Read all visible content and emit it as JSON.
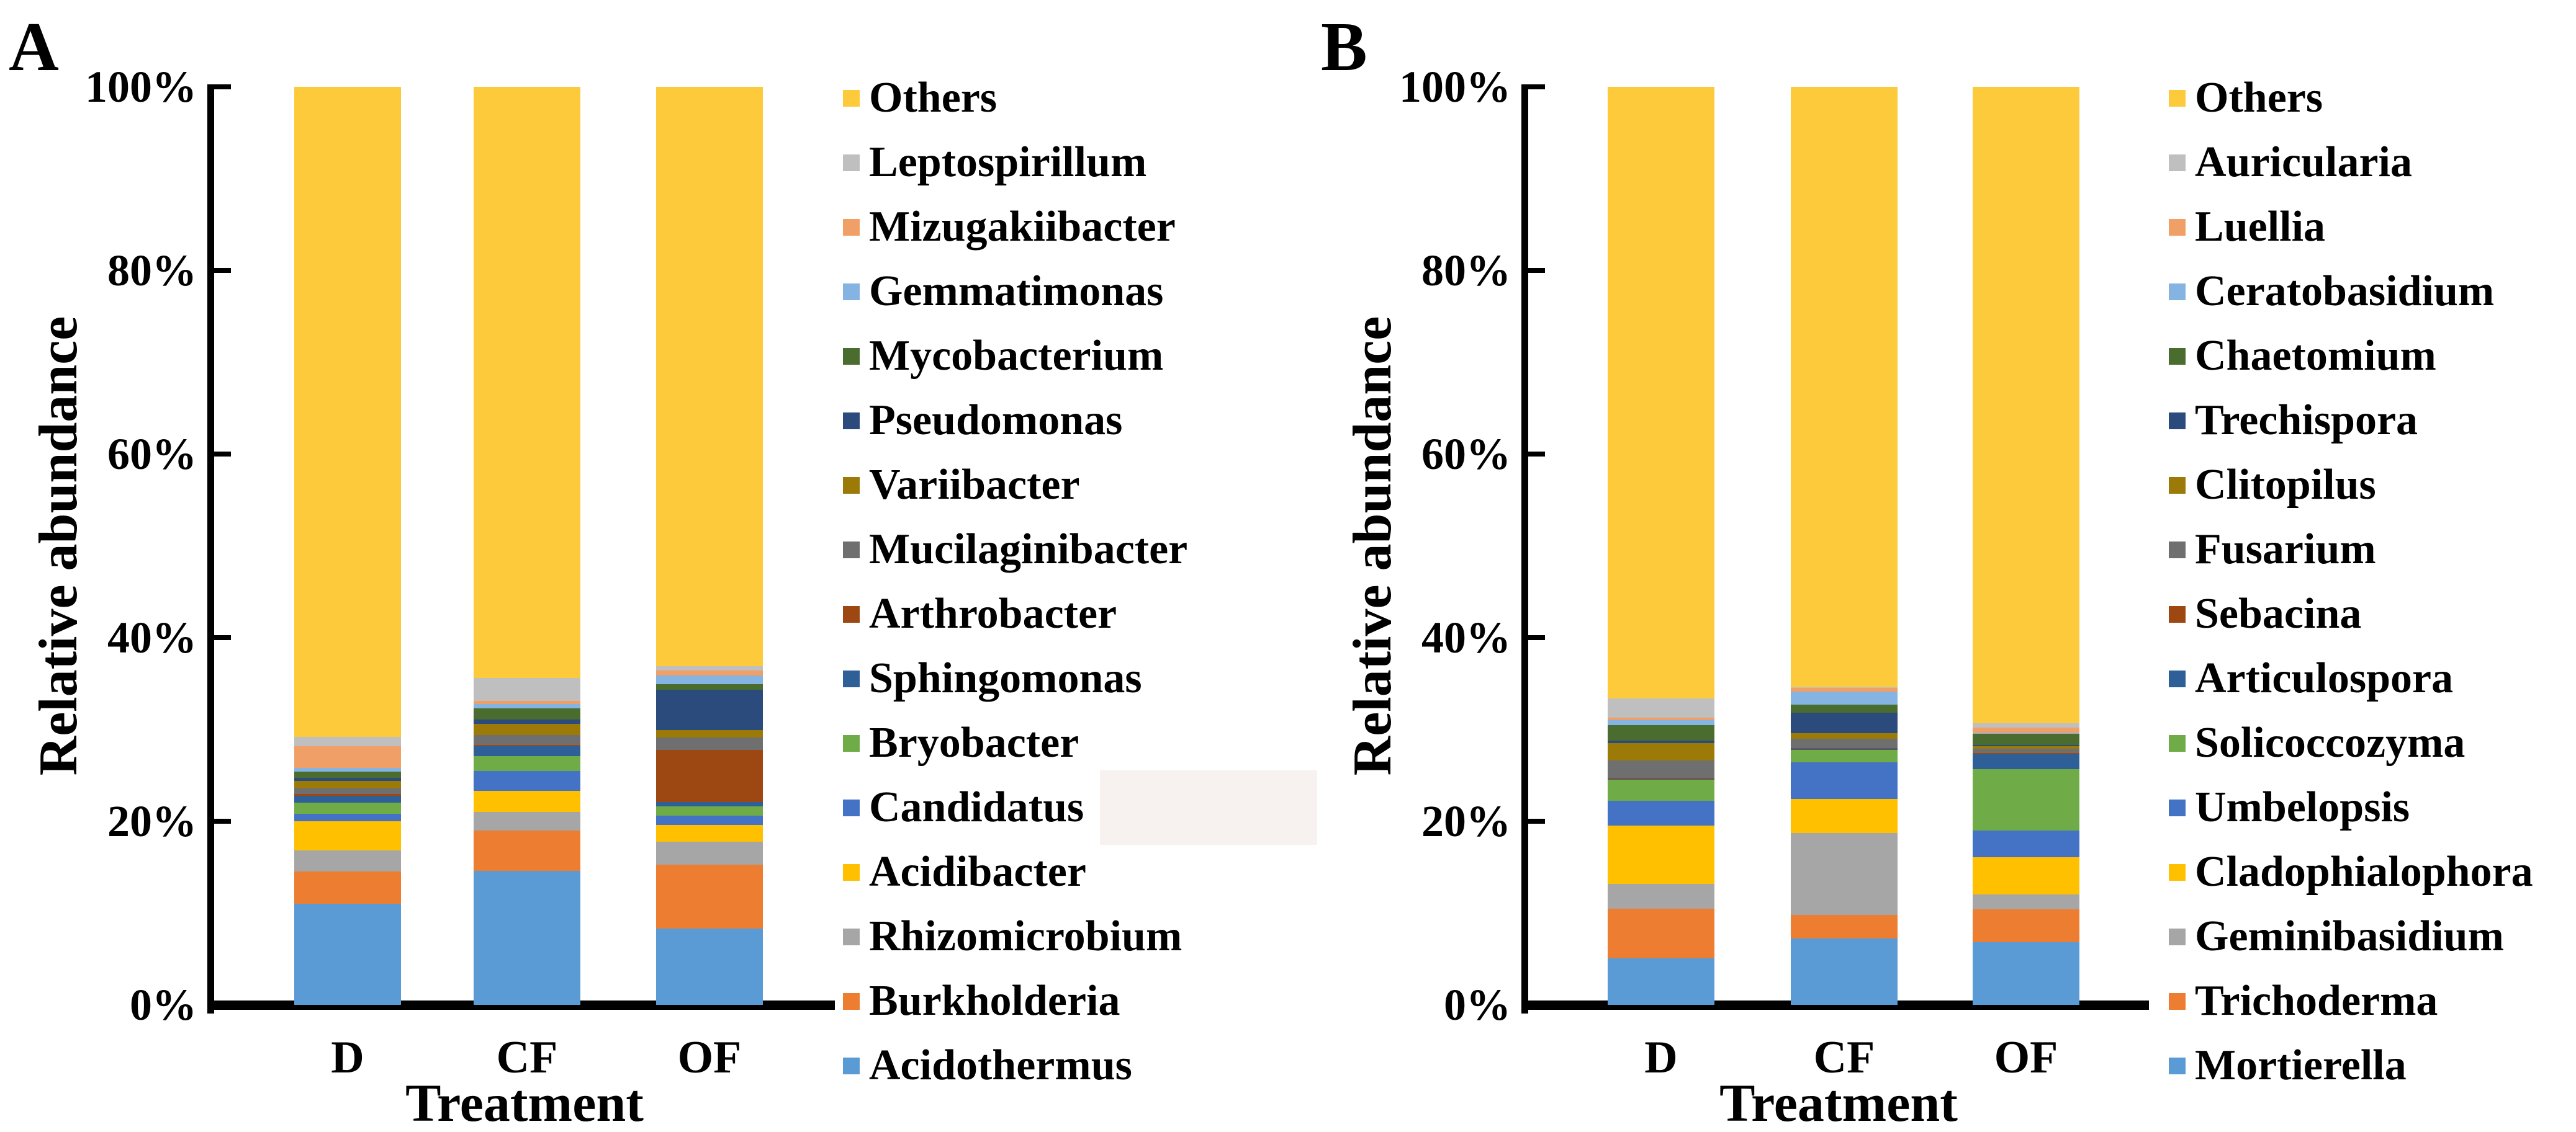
{
  "figure": {
    "background": "#ffffff",
    "text_color": "#000000"
  },
  "overlay_patch": {
    "color": "#F7F1EF",
    "description": "light blank rectangle covering area right of the Candidatus legend label"
  },
  "chart_data": [
    {
      "type": "bar",
      "stacked": true,
      "panel_label": "A",
      "subject": "bacterial genera relative abundance",
      "xlabel": "Treatment",
      "ylabel": "Relative abundance",
      "categories": [
        "D",
        "CF",
        "OF"
      ],
      "ylim": [
        0,
        100
      ],
      "y_ticks_percent": [
        100,
        80,
        60,
        40,
        20,
        0
      ],
      "y_tick_labels": [
        "100%",
        "80%",
        "60%",
        "40%",
        "20%",
        "0%"
      ],
      "grid": false,
      "legend_position": "right-outside",
      "series_order_note": "series listed top-to-bottom as in legend; bars stack with the last series at the bottom",
      "series": [
        {
          "name": "Others",
          "color": "#FDCA3B",
          "values": [
            70.8,
            64.4,
            63.1
          ]
        },
        {
          "name": "Leptospirillum",
          "color": "#BFBFBF",
          "values": [
            1.0,
            2.5,
            0.5
          ]
        },
        {
          "name": "Mizugakiibacter",
          "color": "#F0A067",
          "values": [
            2.4,
            0.3,
            0.5
          ]
        },
        {
          "name": "Gemmatimonas",
          "color": "#85B3E2",
          "values": [
            0.4,
            0.5,
            1.0
          ]
        },
        {
          "name": "Mycobacterium",
          "color": "#4A6C2E",
          "values": [
            0.7,
            1.2,
            0.6
          ]
        },
        {
          "name": "Pseudomonas",
          "color": "#2C4B7D",
          "values": [
            0.3,
            0.5,
            4.4
          ]
        },
        {
          "name": "Variibacter",
          "color": "#9B7A08",
          "values": [
            0.8,
            1.2,
            0.8
          ]
        },
        {
          "name": "Mucilaginibacter",
          "color": "#6F6F6F",
          "values": [
            0.6,
            1.1,
            1.3
          ]
        },
        {
          "name": "Arthrobacter",
          "color": "#9D4813",
          "values": [
            0.2,
            0.1,
            5.7
          ]
        },
        {
          "name": "Sphingomonas",
          "color": "#2E5F96",
          "values": [
            0.8,
            1.1,
            0.5
          ]
        },
        {
          "name": "Bryobacter",
          "color": "#6FAC47",
          "values": [
            1.2,
            1.6,
            1.0
          ]
        },
        {
          "name": "Candidatus",
          "color": "#4472C4",
          "values": [
            0.8,
            2.2,
            1.0
          ]
        },
        {
          "name": "Acidibacter",
          "color": "#FFC000",
          "values": [
            3.2,
            2.3,
            1.8
          ]
        },
        {
          "name": "Rhizomicrobium",
          "color": "#A6A6A6",
          "values": [
            2.3,
            2.0,
            2.5
          ]
        },
        {
          "name": "Burkholderia",
          "color": "#ED7D31",
          "values": [
            3.5,
            4.4,
            7.0
          ]
        },
        {
          "name": "Acidothermus",
          "color": "#5B9BD5",
          "values": [
            11.0,
            14.6,
            8.3
          ]
        }
      ]
    },
    {
      "type": "bar",
      "stacked": true,
      "panel_label": "B",
      "subject": "fungal genera relative abundance",
      "xlabel": "Treatment",
      "ylabel": "Relative abundance",
      "categories": [
        "D",
        "CF",
        "OF"
      ],
      "ylim": [
        0,
        100
      ],
      "y_ticks_percent": [
        100,
        80,
        60,
        40,
        20,
        0
      ],
      "y_tick_labels": [
        "100%",
        "80%",
        "60%",
        "40%",
        "20%",
        "0%"
      ],
      "grid": false,
      "legend_position": "right-outside",
      "series_order_note": "series listed top-to-bottom as in legend; bars stack with the last series at the bottom",
      "series": [
        {
          "name": "Others",
          "color": "#FDCA3B",
          "values": [
            66.6,
            65.4,
            69.3
          ]
        },
        {
          "name": "Auricularia",
          "color": "#BFBFBF",
          "values": [
            2.1,
            0.1,
            0.5
          ]
        },
        {
          "name": "Luellia",
          "color": "#F0A067",
          "values": [
            0.3,
            0.4,
            0.6
          ]
        },
        {
          "name": "Ceratobasidium",
          "color": "#85B3E2",
          "values": [
            0.5,
            1.4,
            0.1
          ]
        },
        {
          "name": "Chaetomium",
          "color": "#4A6C2E",
          "values": [
            1.7,
            0.9,
            1.2
          ]
        },
        {
          "name": "Trechispora",
          "color": "#2C4B7D",
          "values": [
            0.3,
            2.2,
            0.1
          ]
        },
        {
          "name": "Clitopilus",
          "color": "#9B7A08",
          "values": [
            1.9,
            0.6,
            0.3
          ]
        },
        {
          "name": "Fusarium",
          "color": "#6F6F6F",
          "values": [
            1.9,
            1.0,
            0.5
          ]
        },
        {
          "name": "Sebacina",
          "color": "#9D4813",
          "values": [
            0.1,
            0.1,
            0.1
          ]
        },
        {
          "name": "Articulospora",
          "color": "#2E5F96",
          "values": [
            0.1,
            0.1,
            1.6
          ]
        },
        {
          "name": "Solicoccozyma",
          "color": "#6FAC47",
          "values": [
            2.3,
            1.4,
            6.7
          ]
        },
        {
          "name": "Umbelopsis",
          "color": "#4472C4",
          "values": [
            2.7,
            4.0,
            2.9
          ]
        },
        {
          "name": "Cladophialophora",
          "color": "#FFC000",
          "values": [
            6.3,
            3.7,
            4.1
          ]
        },
        {
          "name": "Geminibasidium",
          "color": "#A6A6A6",
          "values": [
            2.7,
            8.9,
            1.6
          ]
        },
        {
          "name": "Trichoderma",
          "color": "#ED7D31",
          "values": [
            5.4,
            2.6,
            3.6
          ]
        },
        {
          "name": "Mortierella",
          "color": "#5B9BD5",
          "values": [
            5.1,
            7.2,
            6.8
          ]
        }
      ]
    }
  ]
}
